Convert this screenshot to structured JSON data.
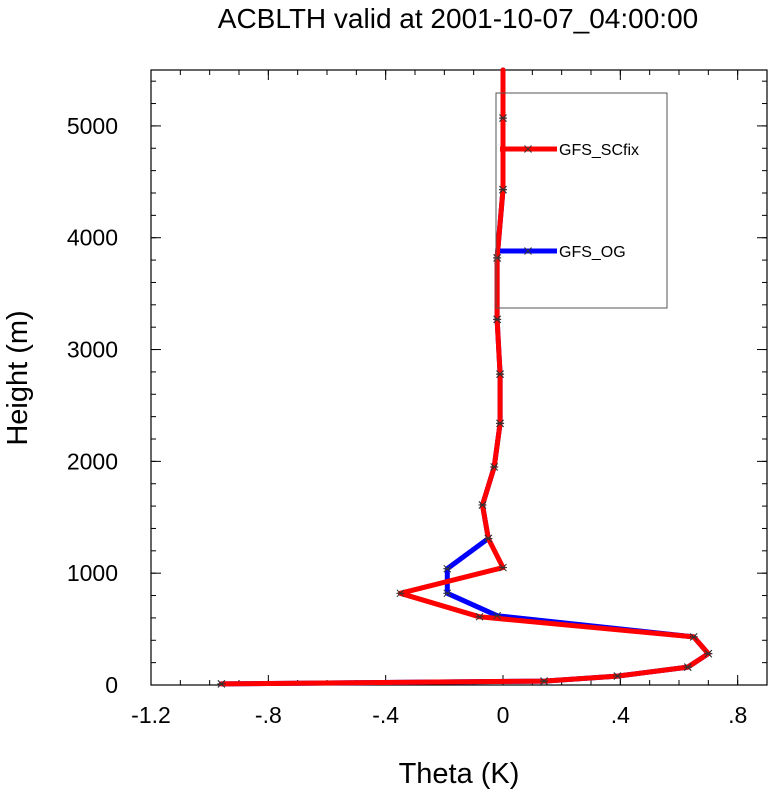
{
  "chart_data": {
    "type": "line",
    "title": "ACBLTH valid at 2001-10-07_04:00:00",
    "xlabel": "Theta (K)",
    "ylabel": "Height (m)",
    "xlim": [
      -1.2,
      0.9
    ],
    "ylim": [
      0,
      5500
    ],
    "xticks": [
      {
        "value": -1.2,
        "label": "-1.2"
      },
      {
        "value": -0.8,
        "label": "-.8"
      },
      {
        "value": -0.4,
        "label": "-.4"
      },
      {
        "value": 0,
        "label": "0"
      },
      {
        "value": 0.4,
        "label": ".4"
      },
      {
        "value": 0.8,
        "label": ".8"
      }
    ],
    "yticks": [
      {
        "value": 0,
        "label": "0"
      },
      {
        "value": 1000,
        "label": "1000"
      },
      {
        "value": 2000,
        "label": "2000"
      },
      {
        "value": 3000,
        "label": "3000"
      },
      {
        "value": 4000,
        "label": "4000"
      },
      {
        "value": 5000,
        "label": "5000"
      }
    ],
    "grid": false,
    "legend_position": "top-right",
    "series": [
      {
        "name": "GFS_OG",
        "color": "#0000ff",
        "points": [
          [
            -0.96,
            10
          ],
          [
            0.14,
            35
          ],
          [
            0.39,
            80
          ],
          [
            0.63,
            160
          ],
          [
            0.7,
            280
          ],
          [
            0.65,
            430
          ],
          [
            -0.02,
            620
          ],
          [
            -0.19,
            820
          ],
          [
            -0.19,
            1040
          ],
          [
            -0.05,
            1310
          ],
          [
            -0.07,
            1610
          ],
          [
            -0.03,
            1950
          ],
          [
            -0.01,
            2340
          ],
          [
            -0.01,
            2780
          ],
          [
            -0.02,
            3270
          ],
          [
            -0.02,
            3820
          ],
          [
            0.0,
            4430
          ],
          [
            0.0,
            5070
          ],
          [
            0.0,
            5500
          ]
        ]
      },
      {
        "name": "GFS_SCfix",
        "color": "#ff0000",
        "points": [
          [
            -0.96,
            10
          ],
          [
            0.14,
            35
          ],
          [
            0.39,
            80
          ],
          [
            0.63,
            160
          ],
          [
            0.7,
            280
          ],
          [
            0.65,
            430
          ],
          [
            -0.08,
            610
          ],
          [
            -0.35,
            820
          ],
          [
            0.0,
            1050
          ],
          [
            -0.05,
            1310
          ],
          [
            -0.07,
            1610
          ],
          [
            -0.03,
            1950
          ],
          [
            -0.01,
            2340
          ],
          [
            -0.01,
            2780
          ],
          [
            -0.02,
            3270
          ],
          [
            -0.02,
            3820
          ],
          [
            0.0,
            4430
          ],
          [
            0.0,
            5070
          ],
          [
            0.0,
            5500
          ]
        ]
      }
    ]
  }
}
